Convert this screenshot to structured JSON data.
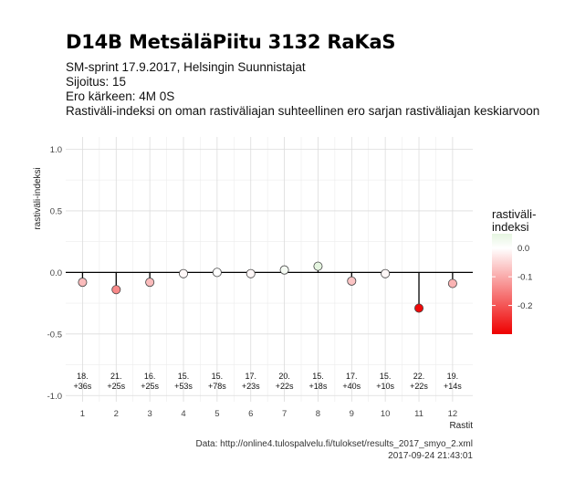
{
  "header": {
    "title": "D14B MetsäläPiitu 3132 RaKaS",
    "subtitles": [
      "SM-sprint 17.9.2017, Helsingin Suunnistajat",
      "Sijoitus: 15",
      "Ero kärkeen: 4M 0S",
      "Rastiväli-indeksi on oman rastiväliajan suhteellinen ero sarjan rastiväliajan keskiarvoon"
    ]
  },
  "caption": {
    "source": "Data: http://online4.tulospalvelu.fi/tulokset/results_2017_smyo_2.xml",
    "timestamp": "2017-09-24 21:43:01"
  },
  "chart_data": {
    "type": "scatter",
    "style": "lollipop",
    "xlabel": "Rastit",
    "ylabel": "rastiväli-indeksi",
    "x": [
      1,
      2,
      3,
      4,
      5,
      6,
      7,
      8,
      9,
      10,
      11,
      12
    ],
    "values": [
      -0.08,
      -0.14,
      -0.08,
      -0.01,
      0.0,
      -0.01,
      0.02,
      0.05,
      -0.07,
      -0.01,
      -0.29,
      -0.09
    ],
    "labels": [
      [
        "18.",
        "+36s"
      ],
      [
        "21.",
        "+25s"
      ],
      [
        "16.",
        "+25s"
      ],
      [
        "15.",
        "+53s"
      ],
      [
        "15.",
        "+78s"
      ],
      [
        "17.",
        "+23s"
      ],
      [
        "20.",
        "+22s"
      ],
      [
        "15.",
        "+18s"
      ],
      [
        "17.",
        "+40s"
      ],
      [
        "15.",
        "+10s"
      ],
      [
        "22.",
        "+22s"
      ],
      [
        "19.",
        "+14s"
      ]
    ],
    "xlim": [
      0.5,
      12.6
    ],
    "ylim": [
      -1.05,
      1.1
    ],
    "yticks": [
      "1.0",
      "0.5",
      "0.0",
      "-0.5",
      "-1.0"
    ],
    "ytick_values": [
      1.0,
      0.5,
      0.0,
      -0.5,
      -1.0
    ],
    "grid": true,
    "legend": {
      "title_lines": [
        "rastiväli-",
        "indeksi"
      ],
      "position": "right",
      "ticks": [
        "0.0",
        "-0.1",
        "-0.2"
      ],
      "tick_values": [
        0.0,
        -0.1,
        -0.2
      ],
      "range": [
        -0.3,
        0.05
      ],
      "colors": {
        "high": "#e5f5e0",
        "mid": "#ffffff",
        "low": "#ee0000"
      }
    }
  }
}
